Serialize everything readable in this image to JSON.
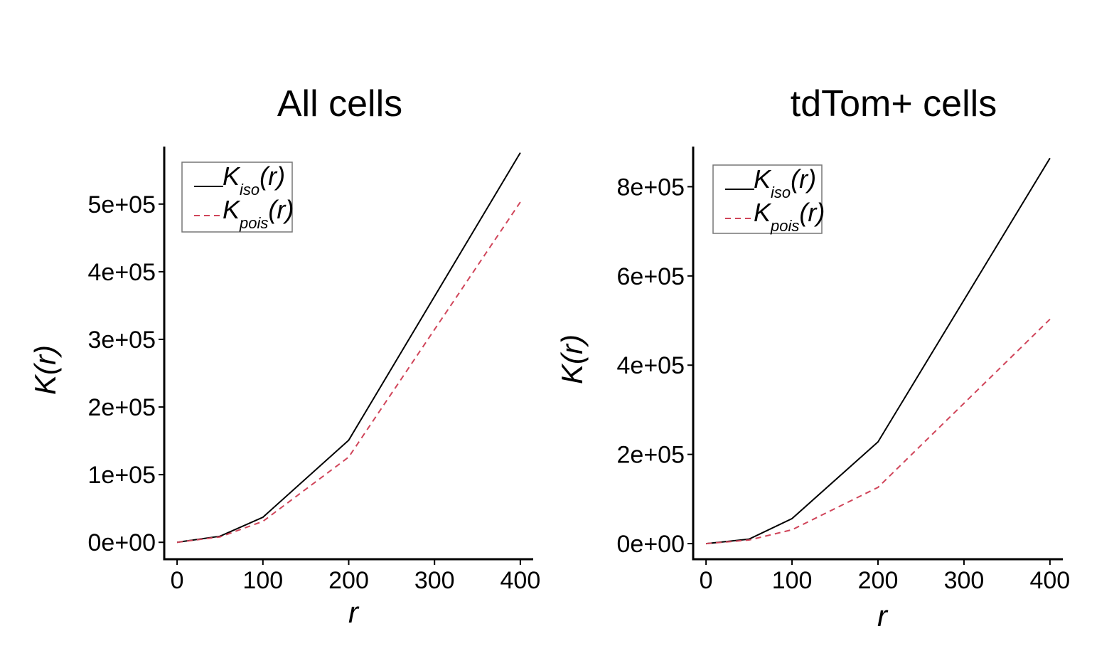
{
  "chart_data": [
    {
      "type": "line",
      "title": "All cells",
      "xlabel": "r",
      "ylabel": "K(r)",
      "x": [
        0,
        50,
        100,
        200,
        400
      ],
      "xlim": [
        -15,
        415
      ],
      "ylim": [
        -25000,
        585000
      ],
      "x_ticks": [
        0,
        100,
        200,
        300,
        400
      ],
      "x_tick_labels": [
        "0",
        "100",
        "200",
        "300",
        "400"
      ],
      "y_ticks": [
        0,
        100000,
        200000,
        300000,
        400000,
        500000
      ],
      "y_tick_labels": [
        "0e+00",
        "1e+05",
        "2e+05",
        "3e+05",
        "4e+05",
        "5e+05"
      ],
      "grid": false,
      "legend_position": "top-left",
      "series": [
        {
          "name": "K_iso(r)",
          "base": "K",
          "sub": "iso",
          "arg": "(r)",
          "color": "#000000",
          "dashed": false,
          "values": [
            0,
            9000,
            37000,
            151000,
            576000
          ]
        },
        {
          "name": "K_pois(r)",
          "base": "K",
          "sub": "pois",
          "arg": "(r)",
          "color": "#d0455a",
          "dashed": true,
          "values": [
            0,
            8000,
            31000,
            126000,
            503000
          ]
        }
      ]
    },
    {
      "type": "line",
      "title": "tdTom+ cells",
      "xlabel": "r",
      "ylabel": "K(r)",
      "x": [
        0,
        50,
        100,
        200,
        400
      ],
      "xlim": [
        -15,
        415
      ],
      "ylim": [
        -35000,
        890000
      ],
      "x_ticks": [
        0,
        100,
        200,
        300,
        400
      ],
      "x_tick_labels": [
        "0",
        "100",
        "200",
        "300",
        "400"
      ],
      "y_ticks": [
        0,
        200000,
        400000,
        600000,
        800000
      ],
      "y_tick_labels": [
        "0e+00",
        "2e+05",
        "4e+05",
        "6e+05",
        "8e+05"
      ],
      "grid": false,
      "legend_position": "top-left",
      "series": [
        {
          "name": "K_iso(r)",
          "base": "K",
          "sub": "iso",
          "arg": "(r)",
          "color": "#000000",
          "dashed": false,
          "values": [
            0,
            10000,
            56000,
            228000,
            864000
          ]
        },
        {
          "name": "K_pois(r)",
          "base": "K",
          "sub": "pois",
          "arg": "(r)",
          "color": "#d0455a",
          "dashed": true,
          "values": [
            0,
            8000,
            31000,
            126000,
            503000
          ]
        }
      ]
    }
  ]
}
